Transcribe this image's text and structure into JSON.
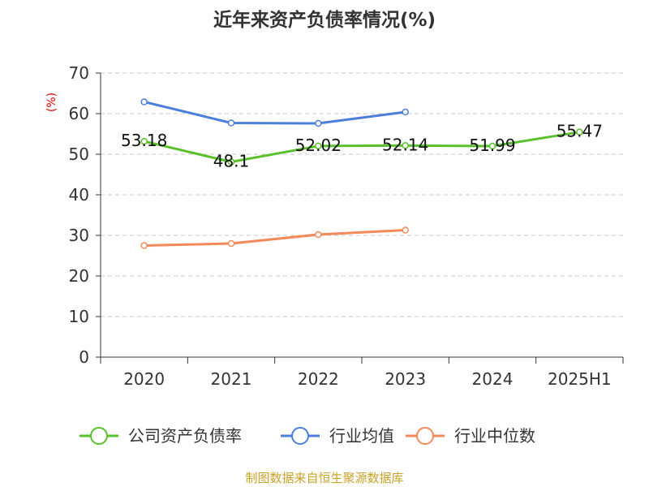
{
  "chart_data": {
    "type": "line",
    "title": "近年来资产负债率情况(%)",
    "ylabel": "(%)",
    "xlabel": "",
    "categories": [
      "2020",
      "2021",
      "2022",
      "2023",
      "2024",
      "2025H1"
    ],
    "ylim": [
      0,
      70
    ],
    "yticks": [
      "0",
      "10",
      "20",
      "30",
      "40",
      "50",
      "60",
      "70"
    ],
    "grid": true,
    "legend_position": "bottom",
    "series": [
      {
        "name": "公司资产负债率",
        "color": "#5ac12c",
        "values": [
          53.18,
          48.1,
          52.02,
          52.14,
          51.99,
          55.47
        ],
        "labels": [
          "53.18",
          "48.1",
          "52.02",
          "52.14",
          "51.99",
          "55.47"
        ]
      },
      {
        "name": "行业均值",
        "color": "#4c7fdc",
        "values": [
          62.9,
          57.7,
          57.6,
          60.4,
          null,
          null
        ],
        "labels": []
      },
      {
        "name": "行业中位数",
        "color": "#f5895a",
        "values": [
          27.5,
          28.0,
          30.2,
          31.3,
          null,
          null
        ],
        "labels": []
      }
    ],
    "source": "制图数据来自恒生聚源数据库"
  }
}
